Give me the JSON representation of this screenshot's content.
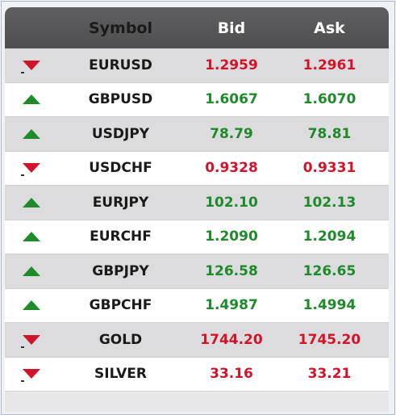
{
  "header": {
    "symbol": "Symbol",
    "bid": "Bid",
    "ask": "Ask"
  },
  "colors": {
    "up": "#1e8a2a",
    "down": "#d2142b"
  },
  "rows": [
    {
      "symbol": "EURUSD",
      "bid": "1.2959",
      "ask": "1.2961",
      "direction": "down"
    },
    {
      "symbol": "GBPUSD",
      "bid": "1.6067",
      "ask": "1.6070",
      "direction": "up"
    },
    {
      "symbol": "USDJPY",
      "bid": "78.79",
      "ask": "78.81",
      "direction": "up"
    },
    {
      "symbol": "USDCHF",
      "bid": "0.9328",
      "ask": "0.9331",
      "direction": "down"
    },
    {
      "symbol": "EURJPY",
      "bid": "102.10",
      "ask": "102.13",
      "direction": "up"
    },
    {
      "symbol": "EURCHF",
      "bid": "1.2090",
      "ask": "1.2094",
      "direction": "up"
    },
    {
      "symbol": "GBPJPY",
      "bid": "126.58",
      "ask": "126.65",
      "direction": "up"
    },
    {
      "symbol": "GBPCHF",
      "bid": "1.4987",
      "ask": "1.4994",
      "direction": "up"
    },
    {
      "symbol": "GOLD",
      "bid": "1744.20",
      "ask": "1745.20",
      "direction": "down"
    },
    {
      "symbol": "SILVER",
      "bid": "33.16",
      "ask": "33.21",
      "direction": "down"
    }
  ]
}
